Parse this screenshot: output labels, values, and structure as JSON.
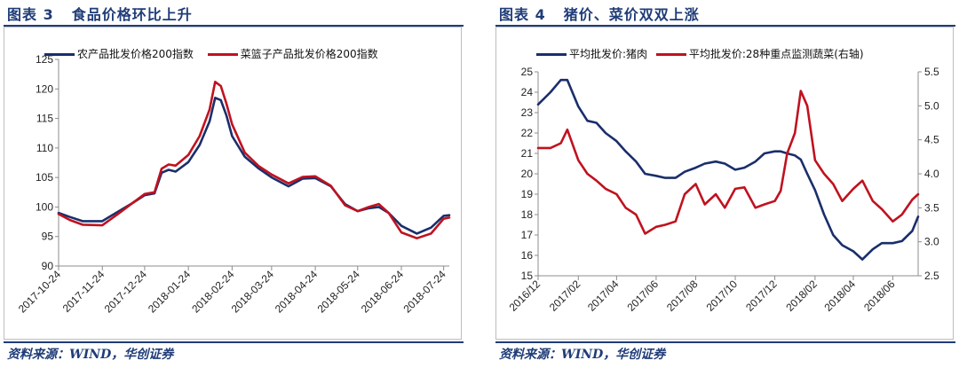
{
  "left": {
    "title_label": "图表 3",
    "title_text": "食品价格环比上升",
    "source": "资料来源：WIND，华创证券"
  },
  "right": {
    "title_label": "图表 4",
    "title_text": "猪价、菜价双双上涨",
    "source": "资料来源：WIND，华创证券"
  },
  "colors": {
    "navy": "#1a2e6b",
    "red": "#c0121f",
    "brand": "#1f3c78"
  },
  "chart_data": [
    {
      "type": "line",
      "title": "",
      "xlabel": "",
      "ylabel": "",
      "ylim": [
        90,
        125
      ],
      "yticks": [
        90,
        95,
        100,
        105,
        110,
        115,
        120,
        125
      ],
      "x_ticks": [
        "2017-10-24",
        "2017-11-24",
        "2017-12-24",
        "2018-01-24",
        "2018-02-24",
        "2018-03-24",
        "2018-04-24",
        "2018-05-24",
        "2018-06-24",
        "2018-07-24"
      ],
      "x": [
        "2017-10-24",
        "2017-11-01",
        "2017-11-10",
        "2017-11-24",
        "2017-12-05",
        "2017-12-15",
        "2017-12-24",
        "2017-12-31",
        "2018-01-05",
        "2018-01-10",
        "2018-01-15",
        "2018-01-24",
        "2018-02-01",
        "2018-02-08",
        "2018-02-12",
        "2018-02-16",
        "2018-02-20",
        "2018-02-24",
        "2018-03-05",
        "2018-03-15",
        "2018-03-24",
        "2018-04-05",
        "2018-04-15",
        "2018-04-24",
        "2018-05-05",
        "2018-05-15",
        "2018-05-24",
        "2018-06-01",
        "2018-06-08",
        "2018-06-15",
        "2018-06-24",
        "2018-07-05",
        "2018-07-15",
        "2018-07-24",
        "2018-07-28"
      ],
      "legend_position": "top",
      "series": [
        {
          "name": "农产品批发价格200指数",
          "color": "#1a2e6b",
          "values": [
            99.0,
            98.3,
            97.6,
            97.6,
            99.2,
            100.6,
            102.0,
            102.3,
            105.8,
            106.3,
            106.0,
            107.6,
            110.5,
            114.5,
            118.5,
            118.1,
            115.5,
            112.0,
            108.5,
            106.5,
            105.0,
            103.5,
            104.8,
            104.9,
            103.5,
            100.5,
            99.3,
            99.8,
            100.0,
            99.0,
            96.8,
            95.5,
            96.5,
            98.5,
            98.6
          ]
        },
        {
          "name": "菜篮子产品批发价格200指数",
          "color": "#c0121f",
          "values": [
            98.8,
            97.8,
            97.0,
            96.9,
            98.8,
            100.6,
            102.2,
            102.5,
            106.5,
            107.2,
            107.0,
            108.8,
            112.0,
            116.5,
            121.2,
            120.5,
            117.5,
            114.0,
            109.2,
            106.9,
            105.5,
            104.0,
            105.1,
            105.2,
            103.6,
            100.3,
            99.3,
            100.0,
            100.5,
            99.0,
            95.7,
            94.7,
            95.5,
            98.0,
            98.2
          ]
        }
      ]
    },
    {
      "type": "line",
      "title": "",
      "xlabel": "",
      "ylabel": "",
      "ylim": [
        15,
        25
      ],
      "y2lim": [
        2.5,
        5.5
      ],
      "yticks": [
        15,
        16,
        17,
        18,
        19,
        20,
        21,
        22,
        23,
        24,
        25
      ],
      "y2ticks": [
        2.5,
        3.0,
        3.5,
        4.0,
        4.5,
        5.0,
        5.5
      ],
      "x_ticks": [
        "2016/12",
        "2017/02",
        "2017/04",
        "2017/06",
        "2017/08",
        "2017/10",
        "2017/12",
        "2018/02",
        "2018/04",
        "2018/06"
      ],
      "x": [
        "2016-12-01",
        "2016-12-20",
        "2017-01-05",
        "2017-01-15",
        "2017-02-01",
        "2017-02-15",
        "2017-03-01",
        "2017-03-15",
        "2017-04-01",
        "2017-04-15",
        "2017-05-01",
        "2017-05-15",
        "2017-06-01",
        "2017-06-15",
        "2017-07-01",
        "2017-07-15",
        "2017-08-01",
        "2017-08-15",
        "2017-09-01",
        "2017-09-15",
        "2017-10-01",
        "2017-10-15",
        "2017-11-01",
        "2017-11-15",
        "2017-12-01",
        "2017-12-10",
        "2017-12-20",
        "2018-01-01",
        "2018-01-10",
        "2018-01-20",
        "2018-02-01",
        "2018-02-15",
        "2018-03-01",
        "2018-03-15",
        "2018-04-01",
        "2018-04-15",
        "2018-05-01",
        "2018-05-15",
        "2018-06-01",
        "2018-06-15",
        "2018-07-01",
        "2018-07-10"
      ],
      "legend_position": "top",
      "series": [
        {
          "name": "平均批发价:猪肉",
          "axis": "left",
          "color": "#1a2e6b",
          "values": [
            23.4,
            24.0,
            24.6,
            24.6,
            23.3,
            22.6,
            22.5,
            22.0,
            21.6,
            21.1,
            20.6,
            20.0,
            19.9,
            19.8,
            19.8,
            20.1,
            20.3,
            20.5,
            20.6,
            20.5,
            20.2,
            20.3,
            20.6,
            21.0,
            21.1,
            21.1,
            21.0,
            20.9,
            20.7,
            20.0,
            19.2,
            18.0,
            17.0,
            16.5,
            16.2,
            15.8,
            16.3,
            16.6,
            16.6,
            16.7,
            17.2,
            17.9
          ]
        },
        {
          "name": "平均批发价:28种重点监测蔬菜(右轴)",
          "axis": "right",
          "color": "#c0121f",
          "values": [
            4.38,
            4.38,
            4.45,
            4.65,
            4.2,
            4.0,
            3.9,
            3.78,
            3.7,
            3.5,
            3.4,
            3.12,
            3.22,
            3.25,
            3.3,
            3.7,
            3.85,
            3.55,
            3.7,
            3.5,
            3.78,
            3.8,
            3.5,
            3.55,
            3.6,
            3.75,
            4.3,
            4.6,
            5.22,
            5.0,
            4.2,
            4.0,
            3.85,
            3.6,
            3.78,
            3.9,
            3.6,
            3.48,
            3.3,
            3.4,
            3.62,
            3.7
          ]
        }
      ]
    }
  ]
}
